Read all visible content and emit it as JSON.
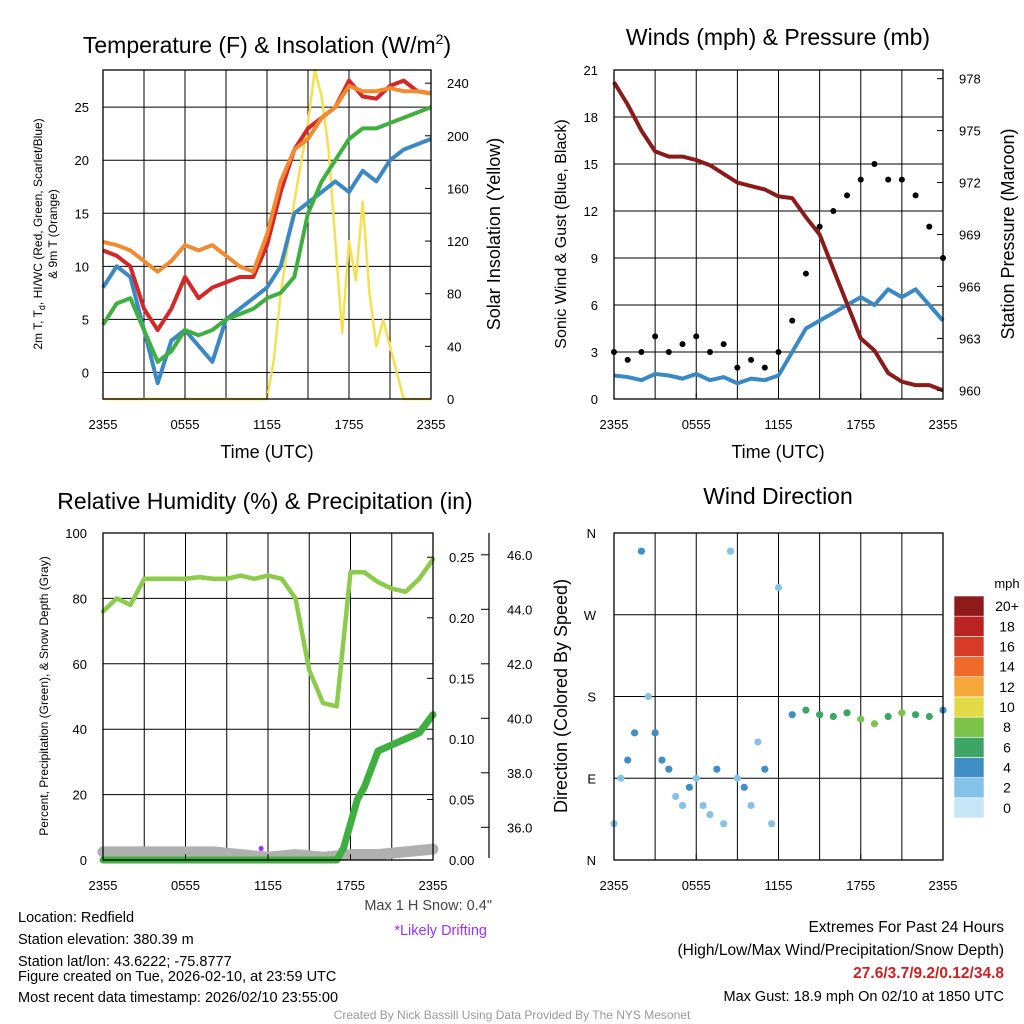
{
  "colors": {
    "red": "#d62728",
    "orange": "#f28a30",
    "green": "#3fb03f",
    "blue": "#3a88c4",
    "yellow": "#f5e050",
    "maroon": "#8b1a1a",
    "gray": "#b0b0b0",
    "lightgreen": "#8ccc4a",
    "purple": "#9b30ff",
    "extremes": "#cc2222"
  },
  "time_ticks": [
    "2355",
    "0555",
    "1155",
    "1755",
    "2355"
  ],
  "info": {
    "location": "Location: Redfield",
    "elevation": "Station elevation: 380.39 m",
    "latlon": "Station lat/lon: 43.6222; -75.8777",
    "created": "Figure created on Tue, 2026-02-10, at 23:59 UTC",
    "recent": "Most recent data timestamp: 2026/02/10 23:55:00",
    "max_snow": "Max 1 H Snow: 0.4\"",
    "drifting": "*Likely Drifting",
    "extremes_title": "Extremes For Past 24 Hours",
    "extremes_sub": "(High/Low/Max Wind/Precipitation/Snow Depth)",
    "extremes_vals": "27.6/3.7/9.2/0.12/34.8",
    "max_gust": "Max Gust: 18.9 mph On 02/10 at 1850 UTC",
    "credit": "Created By Nick Bassill Using Data Provided By The NYS Mesonet"
  },
  "chart_data": [
    {
      "id": "temperature",
      "type": "line",
      "title": "Temperature (F) & Insolation (W/m",
      "title_sup": "2",
      "title_end": ")",
      "xlabel": "Time (UTC)",
      "ylabel_line1": "2m T, T",
      "ylabel_sub": "d",
      "ylabel_line1b": ", HI/WC (Red, Green, Scarlet/Blue)",
      "ylabel_line2": "& 9m T (Orange)",
      "ylabel_right": "Solar Insolation (Yellow)",
      "x_range": [
        0,
        24
      ],
      "ylim": [
        -2.5,
        28.5
      ],
      "yticks": [
        "0",
        "5",
        "10",
        "15",
        "20",
        "25"
      ],
      "ylim_right": [
        0,
        250
      ],
      "yticks_right": [
        "0",
        "40",
        "80",
        "120",
        "160",
        "200",
        "240"
      ],
      "series": [
        {
          "name": "9m T",
          "color": "orange",
          "x": [
            0,
            1,
            2,
            3,
            4,
            5,
            6,
            7,
            8,
            9,
            10,
            11,
            12,
            13,
            14,
            15,
            16,
            17,
            18,
            19,
            20,
            21,
            22,
            23,
            24
          ],
          "values": [
            12.3,
            12,
            11.5,
            10.5,
            9.5,
            10.5,
            12,
            11.5,
            12,
            11,
            10,
            9.5,
            13,
            18,
            21,
            22,
            24,
            25,
            27,
            26.5,
            26.5,
            26.8,
            26.5,
            26.5,
            26.3
          ]
        },
        {
          "name": "2m T",
          "color": "red",
          "x": [
            0,
            1,
            2,
            3,
            4,
            5,
            6,
            7,
            8,
            9,
            10,
            11,
            12,
            13,
            14,
            15,
            16,
            17,
            18,
            19,
            20,
            21,
            22,
            23,
            24
          ],
          "values": [
            11.5,
            11,
            10,
            6,
            4,
            6,
            9,
            7,
            8,
            8.5,
            9,
            9,
            12,
            17,
            21,
            23,
            24,
            25,
            27.5,
            26,
            25.8,
            27,
            27.5,
            26.5,
            26.3
          ]
        },
        {
          "name": "Td",
          "color": "green",
          "x": [
            0,
            1,
            2,
            3,
            4,
            5,
            6,
            7,
            8,
            9,
            10,
            11,
            12,
            13,
            14,
            15,
            16,
            17,
            18,
            19,
            20,
            21,
            22,
            23,
            24
          ],
          "values": [
            4.5,
            6.5,
            7,
            4,
            1,
            2,
            4,
            3.5,
            4,
            5,
            5.5,
            6,
            7,
            7.5,
            9,
            15,
            18,
            20,
            22,
            23,
            23,
            23.5,
            24,
            24.5,
            25
          ]
        },
        {
          "name": "WC",
          "color": "blue",
          "x": [
            0,
            1,
            2,
            3,
            4,
            5,
            6,
            7,
            8,
            9,
            10,
            11,
            12,
            13,
            14,
            15,
            16,
            17,
            18,
            19,
            20,
            21,
            22,
            23,
            24
          ],
          "values": [
            8,
            10,
            9,
            4,
            -1,
            3,
            4,
            2.5,
            1,
            5,
            6,
            7,
            8,
            10,
            15,
            16,
            17,
            18,
            17,
            19,
            18,
            20,
            21,
            21.5,
            22
          ]
        },
        {
          "name": "Insolation",
          "color": "yellow",
          "axis": "right",
          "x": [
            0,
            12,
            12.5,
            13,
            14,
            15,
            15.5,
            16,
            16.5,
            17,
            17.5,
            18,
            18.5,
            19,
            19.5,
            20,
            20.5,
            21,
            21.5,
            22,
            24
          ],
          "values": [
            0,
            0,
            30,
            80,
            150,
            210,
            250,
            230,
            190,
            120,
            50,
            120,
            90,
            150,
            80,
            40,
            60,
            40,
            20,
            0,
            0
          ]
        }
      ]
    },
    {
      "id": "winds",
      "type": "line",
      "title": "Winds (mph) & Pressure (mb)",
      "xlabel": "Time (UTC)",
      "ylabel": "Sonic Wind & Gust (Blue, Black)",
      "ylabel_right": "Station Pressure (Maroon)",
      "x_range": [
        0,
        24
      ],
      "ylim": [
        0,
        21
      ],
      "yticks": [
        "0",
        "3",
        "6",
        "9",
        "12",
        "15",
        "18",
        "21"
      ],
      "ylim_right": [
        959.5,
        978.5
      ],
      "yticks_right": [
        "960",
        "963",
        "966",
        "969",
        "972",
        "975",
        "978"
      ],
      "series": [
        {
          "name": "Sonic Wind",
          "color": "blue",
          "x": [
            0,
            1,
            2,
            3,
            4,
            5,
            6,
            7,
            8,
            9,
            10,
            11,
            12,
            13,
            14,
            15,
            16,
            17,
            18,
            19,
            20,
            21,
            22,
            23,
            24
          ],
          "values": [
            1.5,
            1.4,
            1.2,
            1.6,
            1.5,
            1.3,
            1.6,
            1.2,
            1.4,
            1.0,
            1.3,
            1.2,
            1.5,
            3,
            4.5,
            5,
            5.5,
            6,
            6.5,
            6,
            7,
            6.5,
            7,
            6,
            5
          ]
        },
        {
          "name": "Station Pressure",
          "color": "maroon",
          "axis": "right",
          "x": [
            0,
            1,
            2,
            3,
            4,
            5,
            6,
            7,
            8,
            9,
            10,
            11,
            12,
            13,
            14,
            15,
            16,
            17,
            18,
            19,
            20,
            21,
            22,
            23,
            24
          ],
          "values": [
            977.8,
            976.5,
            975,
            973.8,
            973.5,
            973.5,
            973.3,
            973,
            972.5,
            972,
            971.8,
            971.6,
            971.2,
            971.1,
            970,
            969,
            967,
            965,
            963,
            962.3,
            961,
            960.5,
            960.3,
            960.3,
            960
          ]
        },
        {
          "name": "Gust",
          "color": "black",
          "style": "dots",
          "x": [
            0,
            1,
            2,
            3,
            4,
            5,
            6,
            7,
            8,
            9,
            10,
            11,
            12,
            13,
            14,
            15,
            16,
            17,
            18,
            19,
            20,
            21,
            22,
            23,
            24
          ],
          "values": [
            3,
            2.5,
            3,
            4,
            3,
            3.5,
            4,
            3,
            3.5,
            2,
            2.5,
            2,
            3,
            5,
            8,
            11,
            12,
            13,
            14,
            15,
            14,
            14,
            13,
            11,
            9
          ]
        }
      ]
    },
    {
      "id": "humidity",
      "type": "line",
      "title": "Relative Humidity (%) & Precipitation (in)",
      "ylabel": "Percent, Precipitation (Green), & Snow Depth (Gray)",
      "x_range": [
        0,
        24
      ],
      "ylim": [
        0,
        100
      ],
      "yticks": [
        "0",
        "20",
        "40",
        "60",
        "80",
        "100"
      ],
      "precip_ylim": [
        0,
        0.27
      ],
      "precip_ticks": [
        "0.00",
        "0.05",
        "0.10",
        "0.15",
        "0.20",
        "0.25"
      ],
      "snow_ylim": [
        34.8,
        46.8
      ],
      "snow_ticks": [
        "36.0",
        "38.0",
        "40.0",
        "42.0",
        "44.0",
        "46.0"
      ],
      "series": [
        {
          "name": "Relative Humidity",
          "color": "lightgreen",
          "x": [
            0,
            1,
            2,
            3,
            4,
            5,
            6,
            7,
            8,
            9,
            10,
            11,
            12,
            13,
            14,
            15,
            16,
            17,
            18,
            19,
            20,
            21,
            22,
            23,
            24
          ],
          "values": [
            76,
            80,
            78,
            86,
            86,
            86,
            86,
            86.5,
            86,
            86,
            87,
            86,
            87,
            86,
            80,
            58,
            48,
            47,
            88,
            88,
            85,
            83,
            82,
            86,
            92
          ]
        },
        {
          "name": "Precipitation",
          "color": "green",
          "axis": "precip",
          "x": [
            0,
            17,
            17.5,
            18,
            18.5,
            19,
            19.5,
            20,
            21,
            22,
            23,
            24
          ],
          "values": [
            0,
            0,
            0.01,
            0.03,
            0.05,
            0.06,
            0.075,
            0.09,
            0.095,
            0.1,
            0.105,
            0.12
          ]
        },
        {
          "name": "Snow Depth",
          "color": "gray",
          "axis": "snow",
          "x": [
            0,
            4,
            8,
            12,
            14,
            16,
            18,
            20,
            22,
            24
          ],
          "values": [
            35.1,
            35.1,
            35.1,
            34.9,
            35.0,
            34.9,
            35.0,
            35.0,
            35.1,
            35.2
          ]
        },
        {
          "name": "Likely Drifting",
          "color": "purple",
          "style": "dots",
          "x": [
            11.5
          ],
          "values": [
            3.5
          ]
        }
      ]
    },
    {
      "id": "wind_direction",
      "type": "scatter",
      "title": "Wind Direction",
      "ylabel": "Direction (Colored By Speed)",
      "x_range": [
        0,
        24
      ],
      "ylim": [
        0,
        360
      ],
      "yticks": [
        "N",
        "E",
        "S",
        "W",
        "N"
      ],
      "colorbar_title": "mph",
      "colorbar_labels": [
        "0",
        "2",
        "4",
        "6",
        "8",
        "10",
        "12",
        "14",
        "16",
        "18",
        "20+"
      ],
      "colorbar_colors": [
        "#c6e6f8",
        "#85c2e8",
        "#3f8ec6",
        "#3fa565",
        "#7cc34a",
        "#e3db45",
        "#f6a83b",
        "#ef6b2c",
        "#d83a28",
        "#bb2222",
        "#8f1a1a"
      ],
      "x": [
        0,
        0.5,
        1,
        1.5,
        2,
        2.5,
        3,
        3.5,
        4,
        4.5,
        5,
        5.5,
        6,
        6.5,
        7,
        7.5,
        8,
        8.5,
        9,
        9.5,
        10,
        10.5,
        11,
        11.5,
        12,
        13,
        14,
        15,
        16,
        17,
        18,
        19,
        20,
        21,
        22,
        23,
        24
      ],
      "values": [
        40,
        90,
        110,
        140,
        340,
        180,
        140,
        110,
        100,
        70,
        60,
        80,
        90,
        60,
        50,
        100,
        40,
        340,
        90,
        80,
        60,
        130,
        100,
        40,
        300,
        160,
        165,
        160,
        158,
        162,
        155,
        150,
        158,
        162,
        160,
        158,
        165
      ],
      "speeds": [
        1,
        2,
        3,
        4,
        3,
        2,
        3,
        4,
        3,
        2,
        1,
        3,
        2,
        1,
        2,
        3,
        1,
        1,
        2,
        3,
        1,
        2,
        3,
        1,
        1,
        4,
        5,
        5,
        6,
        6,
        7,
        7,
        6,
        7,
        6,
        5,
        4
      ]
    }
  ]
}
